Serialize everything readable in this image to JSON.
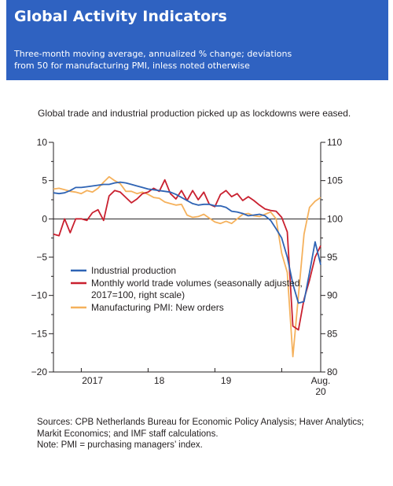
{
  "header": {
    "title": "Global Activity Indicators",
    "subtitle": "Three-month moving average, annualized % change; deviations from 50 for manufacturing PMI, inless noted otherwise"
  },
  "caption": "Global trade and industrial production picked up as lockdowns were eased.",
  "notes": [
    "Sources: CPB Netherlands Bureau for Economic Policy Analysis; Haver Analytics;",
    "Markit Economics; and IMF staff calculations.",
    "Note: PMI = purchasing managers’ index."
  ],
  "colors": {
    "header_bg": "#2f62c1",
    "industrial_production": "#2e63b4",
    "trade_volumes": "#c9202f",
    "pmi_new_orders": "#f5b15c"
  },
  "chart_data": {
    "type": "line",
    "x_range": [
      "2016-08",
      "2020-08"
    ],
    "x_ticks": [
      {
        "label": "2017",
        "x": "2017-03"
      },
      {
        "label": "18",
        "x": "2018-03"
      },
      {
        "label": "19",
        "x": "2019-03"
      },
      {
        "label": "Aug.\n20",
        "x": "2020-08"
      }
    ],
    "y_left": {
      "min": -20,
      "max": 10,
      "ticks": [
        10,
        5,
        0,
        -5,
        -10,
        -15,
        -20
      ],
      "tick_labels": [
        "10",
        "5",
        "0",
        "−5",
        "−10",
        "−15",
        "−20"
      ]
    },
    "y_right": {
      "min": 80,
      "max": 110,
      "ticks": [
        110,
        105,
        100,
        95,
        90,
        85,
        80
      ],
      "tick_labels": [
        "110",
        "105",
        "100",
        "95",
        "90",
        "85",
        "80"
      ]
    },
    "zero_line": true,
    "legend": {
      "position": "center-left"
    },
    "series": [
      {
        "name": "Industrial production",
        "axis": "left",
        "color": "#2e63b4",
        "x": [
          "2016-08",
          "2016-09",
          "2016-10",
          "2016-11",
          "2016-12",
          "2017-01",
          "2017-02",
          "2017-03",
          "2017-04",
          "2017-05",
          "2017-06",
          "2017-07",
          "2017-08",
          "2017-09",
          "2017-10",
          "2017-11",
          "2017-12",
          "2018-01",
          "2018-02",
          "2018-03",
          "2018-04",
          "2018-05",
          "2018-06",
          "2018-07",
          "2018-08",
          "2018-09",
          "2018-10",
          "2018-11",
          "2018-12",
          "2019-01",
          "2019-02",
          "2019-03",
          "2019-04",
          "2019-05",
          "2019-06",
          "2019-07",
          "2019-08",
          "2019-09",
          "2019-10",
          "2019-11",
          "2019-12",
          "2020-01",
          "2020-02",
          "2020-03",
          "2020-04",
          "2020-05",
          "2020-06",
          "2020-07",
          "2020-08"
        ],
        "y": [
          3.4,
          3.3,
          3.4,
          3.7,
          4.1,
          4.1,
          4.2,
          4.3,
          4.4,
          4.5,
          4.5,
          4.7,
          4.8,
          4.7,
          4.5,
          4.3,
          4.1,
          3.9,
          3.8,
          3.7,
          3.6,
          3.5,
          3.2,
          2.8,
          2.4,
          2.0,
          1.8,
          1.9,
          1.9,
          1.7,
          1.7,
          1.5,
          1.0,
          0.9,
          0.7,
          0.4,
          0.5,
          0.6,
          0.4,
          -0.2,
          -1.3,
          -2.5,
          -5.0,
          -8.5,
          -11.0,
          -10.8,
          -7.0,
          -3.0,
          -6.0
        ]
      },
      {
        "name": "Monthly world trade volumes (seasonally adjusted, 2017=100, right scale)",
        "axis": "right",
        "color": "#c9202f",
        "x": [
          "2016-08",
          "2016-09",
          "2016-10",
          "2016-11",
          "2016-12",
          "2017-01",
          "2017-02",
          "2017-03",
          "2017-04",
          "2017-05",
          "2017-06",
          "2017-07",
          "2017-08",
          "2017-09",
          "2017-10",
          "2017-11",
          "2017-12",
          "2018-01",
          "2018-02",
          "2018-03",
          "2018-04",
          "2018-05",
          "2018-06",
          "2018-07",
          "2018-08",
          "2018-09",
          "2018-10",
          "2018-11",
          "2018-12",
          "2019-01",
          "2019-02",
          "2019-03",
          "2019-04",
          "2019-05",
          "2019-06",
          "2019-07",
          "2019-08",
          "2019-09",
          "2019-10",
          "2019-11",
          "2019-12",
          "2020-01",
          "2020-02",
          "2020-03",
          "2020-04",
          "2020-05",
          "2020-06",
          "2020-07",
          "2020-08"
        ],
        "y": [
          98.0,
          97.8,
          100.0,
          98.2,
          100.0,
          100.0,
          99.8,
          100.8,
          101.2,
          99.8,
          103.0,
          103.7,
          103.5,
          102.8,
          102.1,
          102.6,
          103.3,
          103.5,
          104.0,
          103.6,
          105.1,
          103.3,
          102.6,
          103.7,
          102.4,
          103.7,
          102.5,
          103.5,
          101.9,
          101.6,
          103.2,
          103.7,
          102.9,
          103.3,
          102.4,
          102.9,
          102.4,
          101.8,
          101.3,
          101.1,
          101.0,
          100.2,
          98.3,
          86.0,
          85.5,
          89.5,
          92.0,
          95.0,
          96.5
        ]
      },
      {
        "name": "Manufacturing PMI: New orders",
        "axis": "left",
        "color": "#f5b15c",
        "x": [
          "2016-08",
          "2016-09",
          "2016-10",
          "2016-11",
          "2016-12",
          "2017-01",
          "2017-02",
          "2017-03",
          "2017-04",
          "2017-05",
          "2017-06",
          "2017-07",
          "2017-08",
          "2017-09",
          "2017-10",
          "2017-11",
          "2017-12",
          "2018-01",
          "2018-02",
          "2018-03",
          "2018-04",
          "2018-05",
          "2018-06",
          "2018-07",
          "2018-08",
          "2018-09",
          "2018-10",
          "2018-11",
          "2018-12",
          "2019-01",
          "2019-02",
          "2019-03",
          "2019-04",
          "2019-05",
          "2019-06",
          "2019-07",
          "2019-08",
          "2019-09",
          "2019-10",
          "2019-11",
          "2019-12",
          "2020-01",
          "2020-02",
          "2020-03",
          "2020-04",
          "2020-05",
          "2020-06",
          "2020-07",
          "2020-08"
        ],
        "y": [
          3.9,
          4.0,
          3.8,
          3.6,
          3.5,
          3.3,
          3.7,
          3.5,
          4.0,
          4.8,
          5.5,
          5.0,
          4.6,
          3.6,
          3.6,
          3.3,
          3.5,
          3.2,
          2.8,
          2.7,
          2.2,
          2.0,
          1.8,
          1.9,
          0.5,
          0.2,
          0.3,
          0.6,
          0.1,
          -0.4,
          -0.6,
          -0.3,
          -0.6,
          0.0,
          0.6,
          0.7,
          0.4,
          0.3,
          0.6,
          0.9,
          0.0,
          -4.5,
          -7.0,
          -18.0,
          -10.0,
          -2.0,
          1.5,
          2.3,
          2.8
        ]
      }
    ]
  }
}
